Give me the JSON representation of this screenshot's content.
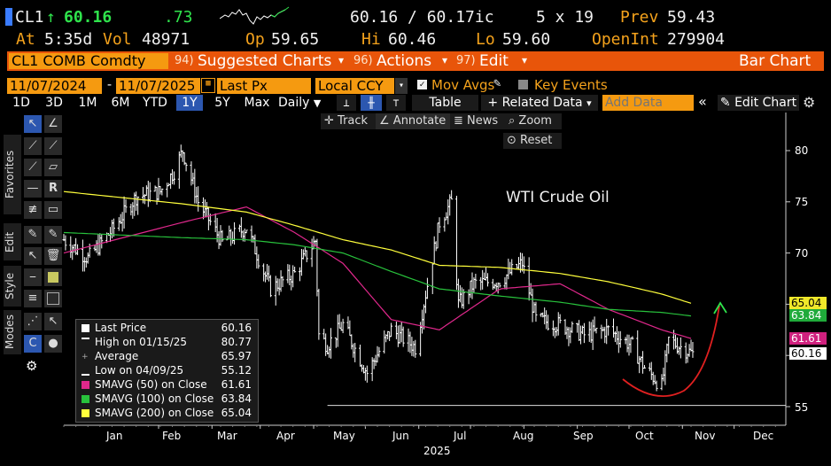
{
  "header": {
    "ticker": "CL1",
    "up_arrow": "↑",
    "last_price": "60.16",
    "change": ".73",
    "bid_ask": "60.16 / 60.17ic",
    "size": "5 x 19",
    "prev_label": "Prev",
    "prev_value": "59.43",
    "at_label": "At",
    "at_time": "5:35d",
    "vol_label": "Vol",
    "vol_value": "48971",
    "open_label": "Op",
    "open_value": "59.65",
    "high_label": "Hi",
    "high_value": "60.46",
    "low_label": "Lo",
    "low_value": "59.60",
    "openint_label": "OpenInt",
    "openint_value": "279904"
  },
  "command_bar": {
    "security": "CL1 COMB Comdty",
    "menu1_num": "94)",
    "menu1_label": "Suggested Charts",
    "menu2_num": "96)",
    "menu2_label": "Actions",
    "menu3_num": "97)",
    "menu3_label": "Edit",
    "title": "Bar Chart"
  },
  "settings": {
    "start_date": "11/07/2024",
    "end_date": "11/07/2025",
    "field": "Last Px",
    "currency": "Local CCY",
    "mov_avgs_label": "Mov Avgs",
    "key_events_label": "Key Events"
  },
  "ranges": {
    "buttons": [
      "1D",
      "3D",
      "1M",
      "6M",
      "YTD",
      "1Y",
      "5Y",
      "Max"
    ],
    "selected": "1Y",
    "period": "Daily",
    "table_label": "Table",
    "related_data_label": "+ Related Data",
    "add_data_placeholder": "Add Data",
    "edit_chart_label": "Edit Chart"
  },
  "chart_tools": {
    "track": "Track",
    "annotate": "Annotate",
    "news": "News",
    "zoom": "Zoom",
    "reset": "Reset"
  },
  "side_tabs": {
    "favorites": "Favorites",
    "edit": "Edit",
    "style": "Style",
    "modes": "Modes"
  },
  "annotation_text": "WTI Crude Oil",
  "legend": {
    "rows": [
      {
        "label": "Last Price",
        "value": "60.16",
        "color": "#ffffff"
      },
      {
        "label": "High on 01/15/25",
        "value": "80.77",
        "color": "#ffffff"
      },
      {
        "label": "Average",
        "value": "65.97",
        "color": "#999999"
      },
      {
        "label": "Low on 04/09/25",
        "value": "55.12",
        "color": "#ffffff"
      },
      {
        "label": "SMAVG (50)  on Close",
        "value": "61.61",
        "color": "#e0288c"
      },
      {
        "label": "SMAVG (100)  on Close",
        "value": "63.84",
        "color": "#28c23c"
      },
      {
        "label": "SMAVG (200)  on Close",
        "value": "65.04",
        "color": "#ffff3c"
      }
    ]
  },
  "price_tags": [
    {
      "value": "65.04",
      "bg": "#f0e82a",
      "fg": "#000000"
    },
    {
      "value": "63.84",
      "bg": "#1faa3a",
      "fg": "#ffffff"
    },
    {
      "value": "61.61",
      "bg": "#d0207e",
      "fg": "#ffffff"
    },
    {
      "value": "60.16",
      "bg": "#ffffff",
      "fg": "#000000"
    }
  ],
  "chart_data": {
    "type": "ohlc-bar",
    "title": "WTI Crude Oil",
    "ylim": [
      54,
      82
    ],
    "yticks": [
      55,
      60,
      65,
      70,
      75,
      80
    ],
    "ytick_labels": [
      "55",
      "",
      "65",
      "70",
      "75",
      "80"
    ],
    "x_months": [
      "Jan",
      "Feb",
      "Mar",
      "Apr",
      "May",
      "Jun",
      "Jul",
      "Aug",
      "Sep",
      "Oct",
      "Nov",
      "Dec"
    ],
    "x_year": "2025",
    "close_series": {
      "x": [
        "2024-11-07",
        "2024-11-21",
        "2024-12-05",
        "2024-12-19",
        "2025-01-02",
        "2025-01-10",
        "2025-01-15",
        "2025-01-24",
        "2025-02-07",
        "2025-02-21",
        "2025-03-07",
        "2025-03-21",
        "2025-04-02",
        "2025-04-04",
        "2025-04-09",
        "2025-04-18",
        "2025-05-02",
        "2025-05-16",
        "2025-05-30",
        "2025-06-13",
        "2025-06-20",
        "2025-06-24",
        "2025-07-03",
        "2025-07-18",
        "2025-07-31",
        "2025-08-08",
        "2025-08-22",
        "2025-09-05",
        "2025-09-19",
        "2025-10-03",
        "2025-10-10",
        "2025-10-20",
        "2025-10-24",
        "2025-11-07"
      ],
      "y": [
        71.3,
        69.5,
        72.2,
        75.5,
        76.0,
        78.0,
        80.0,
        75.0,
        71.0,
        72.5,
        66.5,
        68.0,
        71.2,
        62.0,
        61.0,
        63.0,
        58.3,
        62.5,
        60.8,
        73.0,
        75.0,
        65.0,
        67.0,
        67.3,
        69.0,
        63.5,
        63.0,
        62.0,
        62.5,
        60.9,
        58.8,
        57.0,
        61.5,
        60.16
      ]
    },
    "series": [
      {
        "name": "SMAVG (50)  on Close",
        "color": "#e0288c",
        "x": [
          "2024-11-07",
          "2025-01-15",
          "2025-02-21",
          "2025-03-21",
          "2025-04-18",
          "2025-05-16",
          "2025-06-13",
          "2025-07-18",
          "2025-08-22",
          "2025-09-19",
          "2025-10-20",
          "2025-11-07"
        ],
        "y": [
          70.0,
          73.0,
          74.5,
          72.0,
          69.0,
          63.5,
          62.5,
          66.5,
          67.0,
          64.5,
          62.5,
          61.61
        ]
      },
      {
        "name": "SMAVG (100)  on Close",
        "color": "#28c23c",
        "x": [
          "2024-11-07",
          "2025-01-15",
          "2025-02-21",
          "2025-03-21",
          "2025-04-18",
          "2025-05-16",
          "2025-06-13",
          "2025-07-18",
          "2025-08-22",
          "2025-09-19",
          "2025-10-20",
          "2025-11-07"
        ],
        "y": [
          72.0,
          71.5,
          71.3,
          70.8,
          70.0,
          68.2,
          66.5,
          65.8,
          65.2,
          64.5,
          64.2,
          63.84
        ]
      },
      {
        "name": "SMAVG (200)  on Close",
        "color": "#ffff3c",
        "x": [
          "2024-11-07",
          "2025-01-15",
          "2025-02-21",
          "2025-03-21",
          "2025-04-18",
          "2025-05-16",
          "2025-06-13",
          "2025-07-18",
          "2025-08-22",
          "2025-09-19",
          "2025-10-20",
          "2025-11-07"
        ],
        "y": [
          76.0,
          74.8,
          74.0,
          72.7,
          71.3,
          70.3,
          68.8,
          68.6,
          68.0,
          67.2,
          66.0,
          65.04
        ]
      }
    ],
    "reference_lines": [
      {
        "label": "Average",
        "y": 65.97
      },
      {
        "label": "Low",
        "y": 55.12
      }
    ]
  }
}
